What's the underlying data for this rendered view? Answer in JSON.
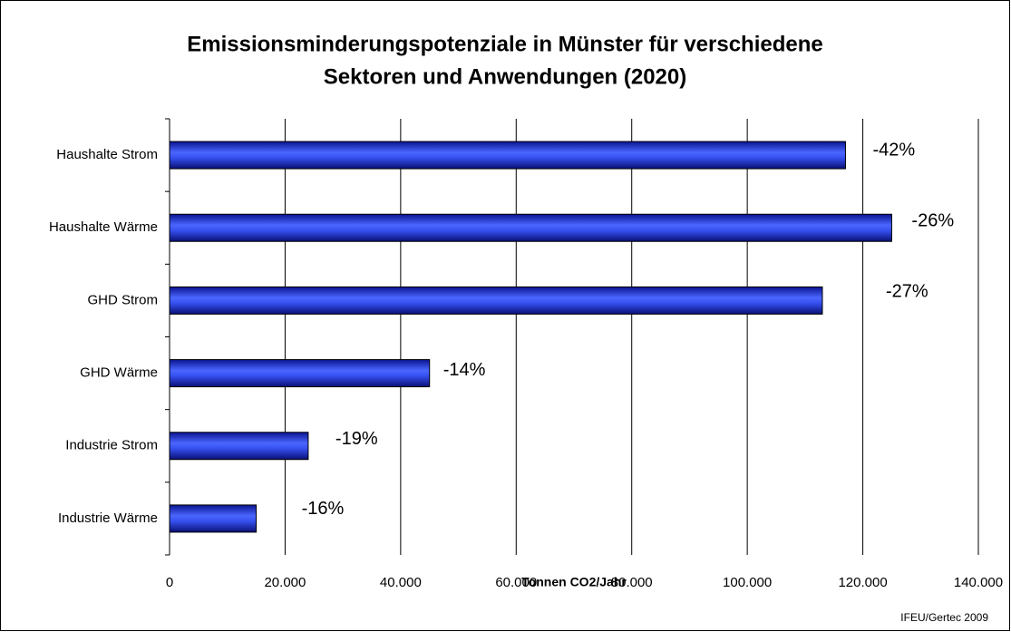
{
  "chart_data": {
    "type": "bar",
    "orientation": "horizontal",
    "title": "Emissionsminderungspotenziale in Münster für verschiedene Sektoren und Anwendungen (2020)",
    "categories": [
      "Haushalte Strom",
      "Haushalte Wärme",
      "GHD Strom",
      "GHD Wärme",
      "Industrie Strom",
      "Industrie Wärme"
    ],
    "values": [
      117000,
      125000,
      113000,
      45000,
      24000,
      15000
    ],
    "annotations": [
      "-42%",
      "-26%",
      "-27%",
      "-14%",
      "-19%",
      "-16%"
    ],
    "color": "#2233dd",
    "xlim": [
      0,
      140000
    ],
    "xticks": [
      0,
      {
        "value": 20000,
        "label": "20.000"
      },
      {
        "value": 40000,
        "label": "40.000"
      },
      {
        "value": 60000,
        "label": "60.000"
      },
      {
        "value": 80000,
        "label": "80.000"
      },
      {
        "value": 100000,
        "label": "100.000"
      },
      {
        "value": 120000,
        "label": "120.000"
      },
      {
        "value": 140000,
        "label": "140.000"
      }
    ],
    "xlabel": "Tonnen CO2/Jahr",
    "source": "IFEU/Gertec 2009",
    "grid": true
  }
}
